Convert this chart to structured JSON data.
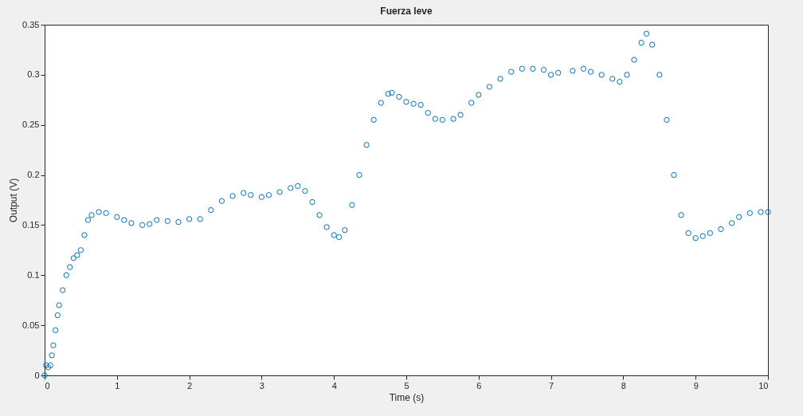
{
  "chart_data": {
    "type": "scatter",
    "title": "Fuerza leve",
    "xlabel": "Time (s)",
    "ylabel": "Output (V)",
    "marker": "circle",
    "grid": false,
    "xlim": [
      0,
      10
    ],
    "ylim": [
      0,
      0.35
    ],
    "xticks": [
      0,
      1,
      2,
      3,
      4,
      5,
      6,
      7,
      8,
      9,
      10
    ],
    "yticks": [
      0,
      0.05,
      0.1,
      0.15,
      0.2,
      0.25,
      0.3,
      0.35
    ],
    "series": [
      {
        "color": "#0072bd",
        "x": [
          0,
          0.02,
          0.05,
          0.08,
          0.1,
          0.12,
          0.15,
          0.18,
          0.2,
          0.25,
          0.3,
          0.35,
          0.4,
          0.45,
          0.5,
          0.55,
          0.6,
          0.65,
          0.75,
          0.85,
          1.0,
          1.1,
          1.2,
          1.35,
          1.45,
          1.55,
          1.7,
          1.85,
          2.0,
          2.15,
          2.3,
          2.45,
          2.6,
          2.75,
          2.85,
          3.0,
          3.1,
          3.25,
          3.4,
          3.5,
          3.6,
          3.7,
          3.8,
          3.9,
          4.0,
          4.07,
          4.15,
          4.25,
          4.35,
          4.45,
          4.55,
          4.65,
          4.75,
          4.8,
          4.9,
          5.0,
          5.1,
          5.2,
          5.3,
          5.4,
          5.5,
          5.65,
          5.75,
          5.9,
          6.0,
          6.15,
          6.3,
          6.45,
          6.6,
          6.75,
          6.9,
          7.0,
          7.1,
          7.3,
          7.45,
          7.55,
          7.7,
          7.85,
          7.95,
          8.05,
          8.15,
          8.25,
          8.32,
          8.4,
          8.5,
          8.6,
          8.7,
          8.8,
          8.9,
          9.0,
          9.1,
          9.2,
          9.35,
          9.5,
          9.6,
          9.75,
          9.9,
          10.0
        ],
        "values": [
          0,
          0.01,
          0.008,
          0.01,
          0.02,
          0.03,
          0.045,
          0.06,
          0.07,
          0.085,
          0.1,
          0.108,
          0.117,
          0.12,
          0.125,
          0.14,
          0.155,
          0.16,
          0.163,
          0.162,
          0.158,
          0.155,
          0.152,
          0.15,
          0.151,
          0.155,
          0.154,
          0.153,
          0.156,
          0.156,
          0.165,
          0.174,
          0.179,
          0.182,
          0.18,
          0.178,
          0.18,
          0.183,
          0.187,
          0.189,
          0.184,
          0.173,
          0.16,
          0.148,
          0.14,
          0.138,
          0.145,
          0.17,
          0.2,
          0.23,
          0.255,
          0.272,
          0.281,
          0.282,
          0.278,
          0.273,
          0.271,
          0.27,
          0.262,
          0.256,
          0.255,
          0.256,
          0.26,
          0.272,
          0.28,
          0.288,
          0.296,
          0.303,
          0.306,
          0.306,
          0.305,
          0.3,
          0.302,
          0.304,
          0.306,
          0.303,
          0.3,
          0.296,
          0.293,
          0.3,
          0.315,
          0.332,
          0.341,
          0.33,
          0.3,
          0.255,
          0.2,
          0.16,
          0.142,
          0.137,
          0.139,
          0.142,
          0.146,
          0.152,
          0.158,
          0.162,
          0.163,
          0.163
        ]
      }
    ]
  }
}
